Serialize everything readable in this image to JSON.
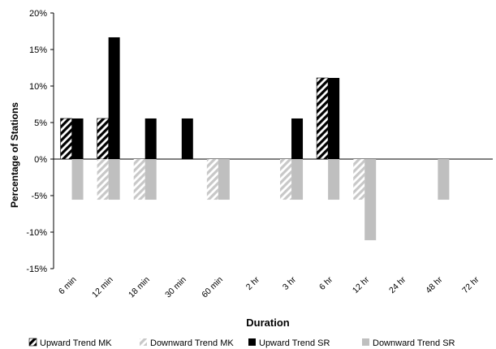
{
  "chart_data": {
    "type": "bar",
    "title": "",
    "xlabel": "Duration",
    "ylabel": "Percentage of Stations",
    "ylim": [
      -15,
      20
    ],
    "yticks": [
      -15,
      -10,
      -5,
      0,
      5,
      10,
      15,
      20
    ],
    "ytick_suffix": "%",
    "grid": false,
    "legend_position": "bottom",
    "categories": [
      "6 min",
      "12 min",
      "18 min",
      "30 min",
      "60 min",
      "2 hr",
      "3 hr",
      "6 hr",
      "12 hr",
      "24 hr",
      "48 hr",
      "72 hr"
    ],
    "series": [
      {
        "name": "Upward Trend MK",
        "style": "hatch-dark",
        "values": [
          5.56,
          5.56,
          0,
          0,
          0,
          0,
          0,
          11.11,
          0,
          0,
          0,
          0
        ]
      },
      {
        "name": "Downward Trend MK",
        "style": "hatch-light",
        "values": [
          0,
          -5.56,
          -5.56,
          0,
          -5.56,
          0,
          -5.56,
          0,
          -5.56,
          0,
          0,
          0
        ]
      },
      {
        "name": "Upward Trend SR",
        "style": "solid",
        "color": "#000000",
        "values": [
          5.56,
          16.67,
          5.56,
          5.56,
          0,
          0,
          5.56,
          11.11,
          0,
          0,
          0,
          0
        ]
      },
      {
        "name": "Downward Trend SR",
        "style": "solid",
        "color": "#bfbfbf",
        "values": [
          -5.56,
          -5.56,
          -5.56,
          0,
          -5.56,
          0,
          -5.56,
          -5.56,
          -11.11,
          0,
          -5.56,
          0
        ]
      }
    ]
  }
}
